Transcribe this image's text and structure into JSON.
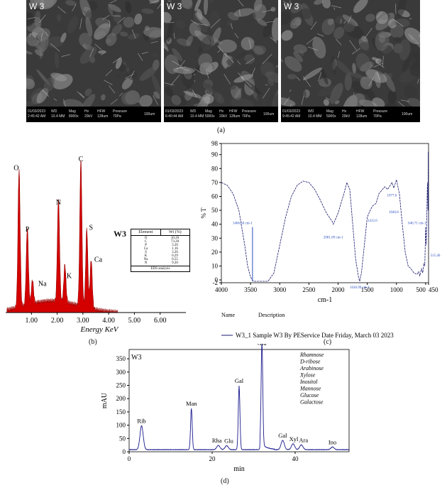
{
  "sem_panel": {
    "images": [
      {
        "label": "W 3",
        "date": "01/03/2023",
        "time": "2:45:42 AM",
        "wd": "10.4 MM",
        "mag": "8000x",
        "hv": "20kV",
        "hfw": "128um",
        "pressure": "70Pa",
        "scale": "100um"
      },
      {
        "label": "W 3",
        "date": "01/03/2023",
        "time": "6:40:44 AM",
        "wd": "10.4 MM",
        "mag": "5000x",
        "hv": "20kV",
        "hfw": "128um",
        "pressure": "70Pa",
        "scale": "100um"
      },
      {
        "label": "W 3",
        "date": "01/03/2023",
        "time": "9:45:42 AM",
        "wd": "10.4 MM",
        "mag": "5000x",
        "hv": "20kV",
        "hfw": "128um",
        "pressure": "70Pa",
        "scale": "100um"
      }
    ],
    "field_names": {
      "wd": "WD",
      "mag": "Mag",
      "hv": "Hv",
      "hfw": "HFW",
      "pressure": "Pressure"
    },
    "caption": "(a)"
  },
  "chart_data": [
    {
      "type": "bar",
      "panel": "EDS spectrum",
      "sample": "W3",
      "xlabel": "Energy KeV",
      "x_ticks": [
        "1.00",
        "2.00",
        "3.00",
        "4.00",
        "5.00",
        "6.00"
      ],
      "xlim": [
        0,
        7
      ],
      "peaks": [
        {
          "element": "O",
          "kev": 0.52,
          "height": 0.93
        },
        {
          "element": "P",
          "kev": 0.84,
          "height": 0.52
        },
        {
          "element": "Na",
          "kev": 1.04,
          "height": 0.16
        },
        {
          "element": "N",
          "kev": 2.05,
          "height": 0.7
        },
        {
          "element": "K",
          "kev": 2.3,
          "height": 0.25
        },
        {
          "element": "C",
          "kev": 2.92,
          "height": 0.99
        },
        {
          "element": "S",
          "kev": 3.15,
          "height": 0.53
        },
        {
          "element": "Ca",
          "kev": 3.32,
          "height": 0.33
        }
      ],
      "table": {
        "headers": [
          "Element",
          "Wt (%)"
        ],
        "elements": [
          "O",
          "C",
          "P",
          "Ca",
          "S",
          "K",
          "Na",
          "N"
        ],
        "weights": [
          "10.20",
          "73.20",
          "3.20",
          "1.16",
          "3.20",
          "0.29",
          "0.55",
          "9.20"
        ],
        "footer": "EDS analysis"
      },
      "caption": "(b)"
    },
    {
      "type": "line",
      "panel": "FTIR spectrum",
      "ylabel": "% T",
      "xlabel": "cm-1",
      "xlim": [
        4000,
        450
      ],
      "ylim": [
        -2,
        98
      ],
      "x_ticks": [
        "4000",
        "3500",
        "3000",
        "2500",
        "2000",
        "1500",
        "1000",
        "500",
        "450"
      ],
      "y_ticks": [
        "98",
        "90",
        "80",
        "70",
        "60",
        "50",
        "40",
        "30",
        "20",
        "10",
        "0",
        "-2"
      ],
      "points": [
        [
          4000,
          70
        ],
        [
          3900,
          68
        ],
        [
          3800,
          62
        ],
        [
          3700,
          50
        ],
        [
          3600,
          25
        ],
        [
          3550,
          10
        ],
        [
          3500,
          2
        ],
        [
          3450,
          -1
        ],
        [
          3400,
          -1
        ],
        [
          3200,
          -1
        ],
        [
          3100,
          5
        ],
        [
          3000,
          25
        ],
        [
          2900,
          45
        ],
        [
          2800,
          60
        ],
        [
          2700,
          68
        ],
        [
          2600,
          71
        ],
        [
          2500,
          70
        ],
        [
          2400,
          65
        ],
        [
          2300,
          57
        ],
        [
          2200,
          48
        ],
        [
          2100,
          42
        ],
        [
          2081,
          40
        ],
        [
          2000,
          48
        ],
        [
          1900,
          62
        ],
        [
          1850,
          70
        ],
        [
          1800,
          65
        ],
        [
          1750,
          40
        ],
        [
          1700,
          15
        ],
        [
          1650,
          2
        ],
        [
          1630,
          -1
        ],
        [
          1600,
          5
        ],
        [
          1550,
          25
        ],
        [
          1500,
          45
        ],
        [
          1450,
          50
        ],
        [
          1412,
          53
        ],
        [
          1350,
          55
        ],
        [
          1300,
          62
        ],
        [
          1200,
          67
        ],
        [
          1150,
          65
        ],
        [
          1077,
          70
        ],
        [
          1046,
          66
        ],
        [
          1000,
          72
        ],
        [
          950,
          62
        ],
        [
          900,
          40
        ],
        [
          850,
          20
        ],
        [
          800,
          10
        ],
        [
          750,
          8
        ],
        [
          700,
          5
        ],
        [
          646,
          4
        ],
        [
          620,
          6
        ],
        [
          600,
          3
        ],
        [
          570,
          8
        ],
        [
          550,
          5
        ],
        [
          530,
          12
        ],
        [
          515,
          10
        ],
        [
          500,
          38
        ],
        [
          490,
          25
        ],
        [
          470,
          70
        ],
        [
          460,
          50
        ],
        [
          455,
          92
        ],
        [
          450,
          30
        ]
      ],
      "annotations": [
        {
          "label": "3466.50 cm-1",
          "x": 3466.5
        },
        {
          "label": "2081.69 cm-1",
          "x": 2081.69
        },
        {
          "label": "1630.99 cm-1",
          "x": 1630.99
        },
        {
          "label": "1412.6",
          "x": 1412.6
        },
        {
          "label": "1077.6",
          "x": 1077.6
        },
        {
          "label": "1046.8",
          "x": 1046.8
        },
        {
          "label": "646.71 cm-1",
          "x": 646.71
        },
        {
          "label": "515.46",
          "x": 515.46
        }
      ],
      "header_name": "Name",
      "header_description": "Description",
      "legend": "W3_1 Sample W3 By PEService Date Friday, March 03 2023",
      "caption": "(c)"
    },
    {
      "type": "line",
      "panel": "HPLC chromatogram",
      "sample": "W3",
      "ylabel": "mAU",
      "xlabel": "min",
      "xlim": [
        0,
        53
      ],
      "ylim": [
        0,
        385
      ],
      "x_ticks": [
        "0",
        "20",
        "40"
      ],
      "y_ticks": [
        "0",
        "50",
        "100",
        "150",
        "200",
        "250",
        "300",
        "350"
      ],
      "baseline": 8,
      "peaks": [
        {
          "label": "Rib",
          "rt": 3.0,
          "height": 90
        },
        {
          "label": "Man",
          "rt": 15.0,
          "height": 155
        },
        {
          "label": "Rha",
          "rt": 21.5,
          "height": 16
        },
        {
          "label": "Glu",
          "rt": 23.5,
          "height": 15
        },
        {
          "label": "Gal",
          "rt": 26.5,
          "height": 240
        },
        {
          "label": "Glu",
          "rt": 32.0,
          "height": 382
        },
        {
          "label": "Gal",
          "rt": 37.0,
          "height": 35
        },
        {
          "label": "Xyl",
          "rt": 39.5,
          "height": 22
        },
        {
          "label": "Ara",
          "rt": 41.5,
          "height": 18
        },
        {
          "label": "Ino",
          "rt": 49.0,
          "height": 10
        }
      ],
      "standards": [
        "Rhamnose",
        "D-ribose",
        "Arabinose",
        "Xylose",
        "Inositol",
        "Mannose",
        "Glucose",
        "Galactose"
      ],
      "caption": "(d)"
    }
  ]
}
